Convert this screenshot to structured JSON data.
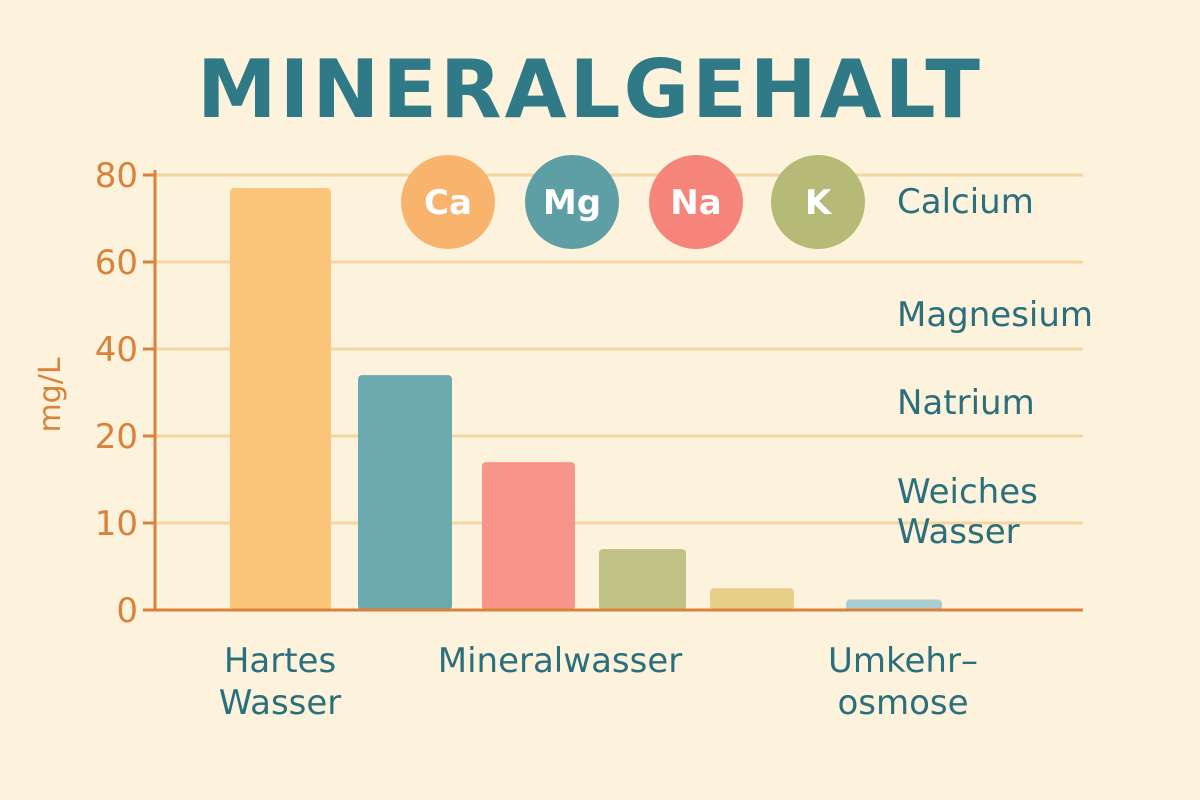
{
  "chart_data": {
    "type": "bar",
    "title": "MINERALGEHALT",
    "ylabel": "mg/L",
    "y_ticks": [
      "0",
      "10",
      "20",
      "40",
      "60",
      "80"
    ],
    "values": [
      77,
      34,
      17,
      7,
      2.5,
      1.2
    ],
    "bar_colors": [
      "#fbc57a",
      "#6baaae",
      "#f7958a",
      "#bfc284",
      "#e6cf86",
      "#a9cdcf"
    ],
    "category_labels": [
      {
        "line1": "Hartes",
        "line2": "Wasser"
      },
      {
        "line1": "Mineralwasser",
        "line2": ""
      },
      {
        "line1": "Umkehr–",
        "line2": "osmose"
      }
    ],
    "badges": [
      {
        "symbol": "Ca",
        "color": "#f8b46c"
      },
      {
        "symbol": "Mg",
        "color": "#5e9fa5"
      },
      {
        "symbol": "Na",
        "color": "#f5857a"
      },
      {
        "symbol": "K",
        "color": "#b5bb77"
      }
    ],
    "legend": [
      {
        "line1": "Calcium",
        "line2": ""
      },
      {
        "line1": "Magnesium",
        "line2": ""
      },
      {
        "line1": "Natrium",
        "line2": ""
      },
      {
        "line1": "Weiches",
        "line2": "Wasser"
      }
    ],
    "grid": true,
    "colors": {
      "axis": "#d9823b",
      "grid": "#f4d6a0",
      "text": "#2b6f7c",
      "title": "#2f7a86"
    }
  }
}
